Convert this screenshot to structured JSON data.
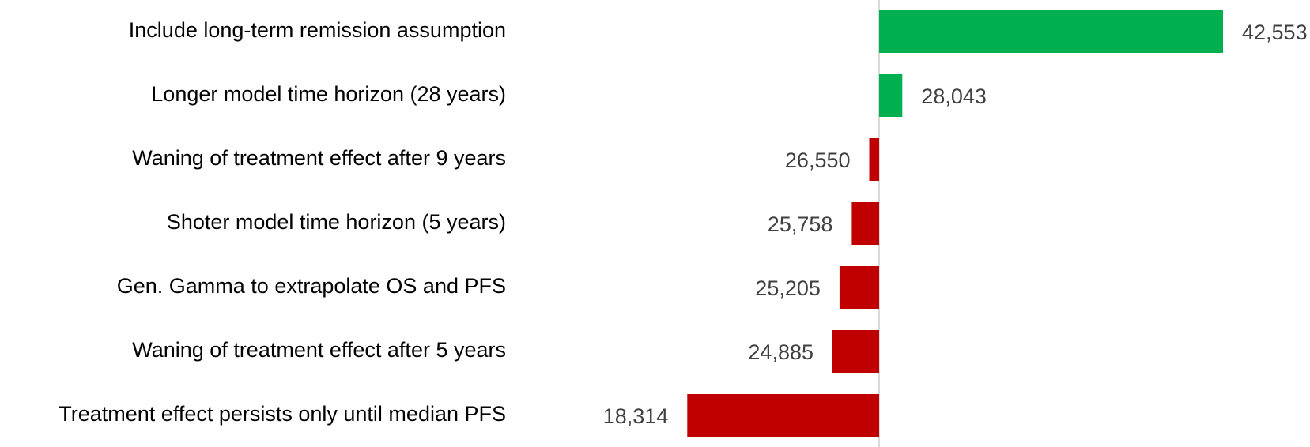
{
  "chart_data": {
    "type": "bar",
    "orientation": "horizontal",
    "baseline": 26996,
    "categories": [
      "Include long-term remission assumption",
      "Longer model time horizon (28 years)",
      "Waning of treatment effect after 9 years ",
      "Shoter model time horizon (5 years)",
      "Gen. Gamma to extrapolate OS and PFS",
      "Waning of treatment effect after 5 years ",
      "Treatment effect persists only until median PFS"
    ],
    "values": [
      42553,
      28043,
      26550,
      25758,
      25205,
      24885,
      18314
    ],
    "value_labels": [
      "42,553",
      "28,043",
      "26,550",
      "25,758",
      "25,205",
      "24,885",
      "18,314"
    ],
    "colors": {
      "above_baseline": "#00b050",
      "below_baseline": "#c00000",
      "baseline_line": "#d9d9d9"
    },
    "title": "",
    "xlabel": "",
    "ylabel": "",
    "grid": false,
    "legend": "none"
  }
}
